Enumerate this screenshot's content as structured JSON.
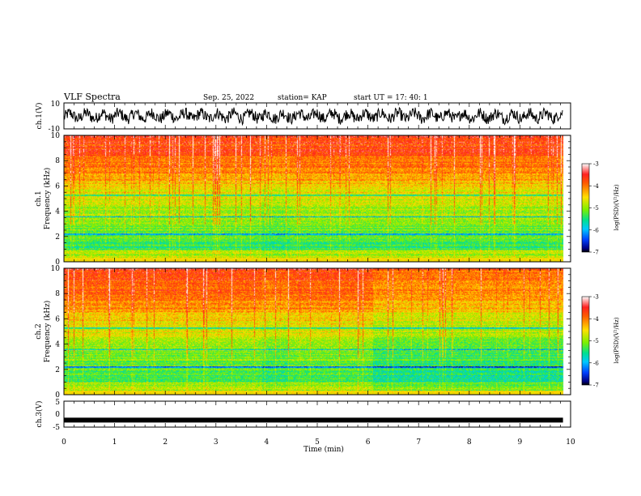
{
  "header": {
    "title": "VLF Spectra",
    "date": "Sep. 25, 2022",
    "station": "station= KAP",
    "start_ut": "start  UT  =   17: 40: 1"
  },
  "chart_data": [
    {
      "type": "line",
      "name": "ch1-waveform",
      "ylabel": "ch.1(V)",
      "ylim": [
        -10,
        10
      ],
      "yticks": [
        "10",
        "-10"
      ],
      "xlim": [
        0,
        10
      ],
      "x_end": 9.85,
      "description_level": "noisy signal oscillating roughly between -6 and +6 V"
    },
    {
      "type": "heatmap",
      "name": "ch1-spectrogram",
      "ylabel": "ch.1\nFrequency (kHz)",
      "ylim": [
        0,
        10
      ],
      "yticks": [
        "0",
        "2",
        "4",
        "6",
        "8",
        "10"
      ],
      "xlim": [
        0,
        10
      ],
      "x_end": 9.85,
      "colorbar": {
        "label": "log(PSD)(V²/Hz)",
        "range": [
          -7,
          -3
        ],
        "ticks": [
          "-3",
          "-4",
          "-5",
          "-6",
          "-7"
        ]
      },
      "segments_min": [
        0,
        3.9,
        4.45,
        6.1,
        9.85
      ]
    },
    {
      "type": "heatmap",
      "name": "ch2-spectrogram",
      "ylabel": "ch.2\nFrequency (kHz)",
      "ylim": [
        0,
        10
      ],
      "yticks": [
        "0",
        "2",
        "4",
        "6",
        "8",
        "10"
      ],
      "xlim": [
        0,
        10
      ],
      "x_end": 9.85,
      "colorbar": {
        "label": "log(PSD)(V²/Hz)",
        "range": [
          -7,
          -3
        ],
        "ticks": [
          "-3",
          "-4",
          "-5",
          "-6",
          "-7"
        ]
      },
      "segments_min": [
        0,
        3.9,
        4.45,
        6.1,
        9.85
      ]
    },
    {
      "type": "line",
      "name": "ch3-waveform",
      "ylabel": "ch.3(V)",
      "ylim": [
        -5,
        5
      ],
      "yticks": [
        "5",
        "0",
        "-5"
      ],
      "xlim": [
        0,
        10
      ],
      "x_end": 9.85,
      "level": -2.3,
      "xlabel": "Time  (min)",
      "xticks": [
        "0",
        "1",
        "2",
        "3",
        "4",
        "5",
        "6",
        "7",
        "8",
        "9",
        "10"
      ]
    }
  ]
}
